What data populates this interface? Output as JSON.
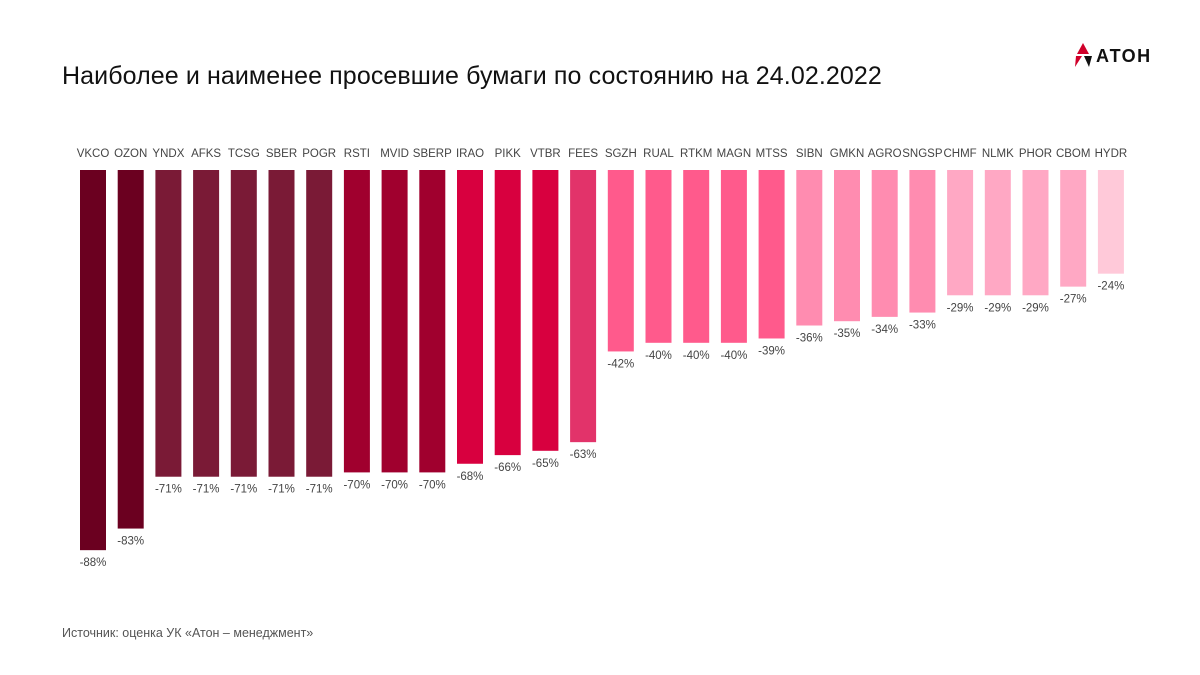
{
  "title": "Наиболее и наименее просевшие бумаги по состоянию на 24.02.2022",
  "logo_text": "АТОН",
  "source": "Источник: оценка УК «Атон – менеджмент»",
  "chart_data": {
    "type": "bar",
    "title": "Наиболее и наименее просевшие бумаги по состоянию на 24.02.2022",
    "categories": [
      "VKCO",
      "OZON",
      "YNDX",
      "AFKS",
      "TCSG",
      "SBER",
      "POGR",
      "RSTI",
      "MVID",
      "SBERP",
      "IRAO",
      "PIKK",
      "VTBR",
      "FEES",
      "SGZH",
      "RUAL",
      "RTKM",
      "MAGN",
      "MTSS",
      "SIBN",
      "GMKN",
      "AGRO",
      "SNGSP",
      "CHMF",
      "NLMK",
      "PHOR",
      "CBOM",
      "HYDR"
    ],
    "values": [
      -88,
      -83,
      -71,
      -71,
      -71,
      -71,
      -71,
      -70,
      -70,
      -70,
      -68,
      -66,
      -65,
      -63,
      -42,
      -40,
      -40,
      -40,
      -39,
      -36,
      -35,
      -34,
      -33,
      -29,
      -29,
      -29,
      -27,
      -24
    ],
    "labels": [
      "-88%",
      "-83%",
      "-71%",
      "-71%",
      "-71%",
      "-71%",
      "-71%",
      "-70%",
      "-70%",
      "-70%",
      "-68%",
      "-66%",
      "-65%",
      "-63%",
      "-42%",
      "-40%",
      "-40%",
      "-40%",
      "-39%",
      "-36%",
      "-35%",
      "-34%",
      "-33%",
      "-29%",
      "-29%",
      "-29%",
      "-27%",
      "-24%"
    ],
    "colors": [
      "#6b0020",
      "#6b0020",
      "#7a1a36",
      "#7a1a36",
      "#7a1a36",
      "#7a1a36",
      "#7a1a36",
      "#a0002e",
      "#a0002e",
      "#a0002e",
      "#d8003f",
      "#d8003f",
      "#d8003f",
      "#e2336a",
      "#ff5a8c",
      "#ff5a8c",
      "#ff5a8c",
      "#ff5a8c",
      "#ff5a8c",
      "#ff8cb0",
      "#ff8cb0",
      "#ff8cb0",
      "#ff8cb0",
      "#ffa8c4",
      "#ffa8c4",
      "#ffa8c4",
      "#ffa8c4",
      "#ffc9d9"
    ],
    "ylim": [
      -100,
      0
    ],
    "grid": false,
    "legend": "none"
  }
}
